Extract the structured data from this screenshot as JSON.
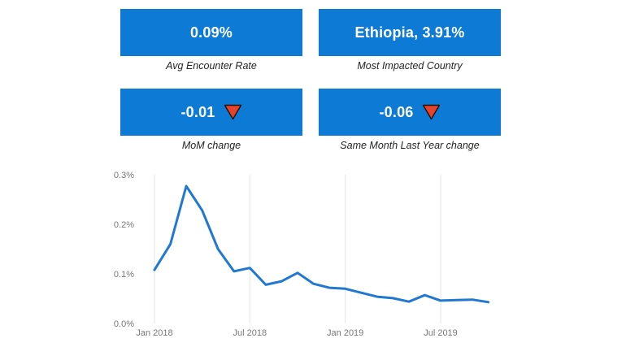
{
  "colors": {
    "card_blue": "#0d7bd6",
    "card_text": "#ffffff",
    "label_text": "#252423",
    "line_blue": "#2078d0",
    "axis_text": "#777777",
    "gridline": "#e6e6e6",
    "triangle_red": "#e8432a",
    "triangle_outline": "#1f1206"
  },
  "cards": [
    {
      "value": "0.09%",
      "label": "Avg Encounter Rate"
    },
    {
      "value": "Ethiopia, 3.91%",
      "label": "Most Impacted Country"
    },
    {
      "value": "-0.01",
      "label": "MoM change",
      "icon": "down-triangle-icon"
    },
    {
      "value": "-0.06",
      "label": "Same Month Last Year change",
      "icon": "down-triangle-icon"
    }
  ],
  "chart_data": {
    "type": "line",
    "title": "",
    "xlabel": "",
    "ylabel": "",
    "unit": "percent",
    "x": [
      "Jan 2018",
      "Feb 2018",
      "Mar 2018",
      "Apr 2018",
      "May 2018",
      "Jun 2018",
      "Jul 2018",
      "Aug 2018",
      "Sep 2018",
      "Oct 2018",
      "Nov 2018",
      "Dec 2018",
      "Jan 2019",
      "Feb 2019",
      "Mar 2019",
      "Apr 2019",
      "May 2019",
      "Jun 2019",
      "Jul 2019",
      "Aug 2019",
      "Sep 2019",
      "Oct 2019"
    ],
    "values": [
      0.108,
      0.16,
      0.277,
      0.228,
      0.15,
      0.105,
      0.112,
      0.078,
      0.085,
      0.102,
      0.08,
      0.072,
      0.07,
      0.062,
      0.054,
      0.051,
      0.044,
      0.057,
      0.046,
      0.047,
      0.048,
      0.043
    ],
    "ylim": [
      0,
      0.3
    ],
    "x_ticks": [
      {
        "index": 0,
        "label": "Jan 2018"
      },
      {
        "index": 6,
        "label": "Jul 2018"
      },
      {
        "index": 12,
        "label": "Jan 2019"
      },
      {
        "index": 18,
        "label": "Jul 2019"
      }
    ],
    "y_ticks": [
      {
        "value": 0.3,
        "label": "0.3%"
      },
      {
        "value": 0.2,
        "label": "0.2%"
      },
      {
        "value": 0.1,
        "label": "0.1%"
      },
      {
        "value": 0.0,
        "label": "0.0%"
      }
    ],
    "grid": "vertical",
    "legend": "none"
  }
}
